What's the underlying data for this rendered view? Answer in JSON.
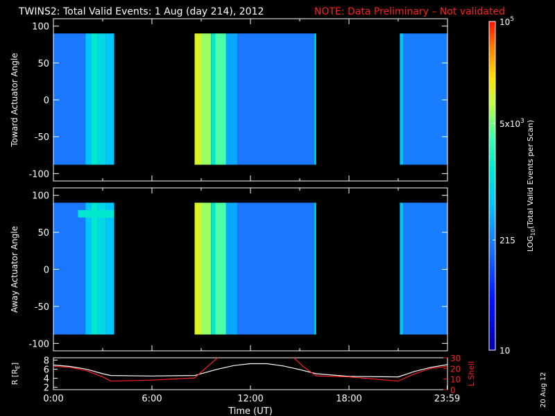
{
  "header": {
    "title": "TWINS2: Total Valid Events:  1 Aug (day 214), 2012",
    "note": "NOTE: Data Preliminary – Not validated",
    "note_color": "#ff2020"
  },
  "stamp": "20 Aug 12",
  "chart_data": [
    {
      "type": "heatmap",
      "panel": "toward",
      "ylabel": "Toward Actuator Angle",
      "xlim": [
        0,
        24
      ],
      "ylim": [
        -110,
        110
      ],
      "yticks": [
        100,
        50,
        0,
        -50,
        -100
      ],
      "data_y_range": [
        -88,
        90
      ],
      "segments": [
        {
          "start": 0.0,
          "end": 1.95,
          "level": 0.32
        },
        {
          "start": 1.95,
          "end": 2.3,
          "level": 0.45
        },
        {
          "start": 2.3,
          "end": 2.7,
          "level": 0.55
        },
        {
          "start": 2.7,
          "end": 3.2,
          "level": 0.5
        },
        {
          "start": 3.2,
          "end": 3.7,
          "level": 0.45
        },
        {
          "start": 8.6,
          "end": 9.0,
          "level": 0.78
        },
        {
          "start": 9.0,
          "end": 9.6,
          "level": 0.72
        },
        {
          "start": 9.6,
          "end": 9.85,
          "level": 0.55
        },
        {
          "start": 9.85,
          "end": 10.5,
          "level": 0.66
        },
        {
          "start": 10.5,
          "end": 11.2,
          "level": 0.4
        },
        {
          "start": 11.2,
          "end": 15.9,
          "level": 0.32
        },
        {
          "start": 15.9,
          "end": 16.0,
          "level": 0.55
        },
        {
          "start": 21.1,
          "end": 21.3,
          "level": 0.45
        },
        {
          "start": 21.3,
          "end": 24.0,
          "level": 0.33
        }
      ]
    },
    {
      "type": "heatmap",
      "panel": "away",
      "ylabel": "Away Actuator Angle",
      "xlim": [
        0,
        24
      ],
      "ylim": [
        -110,
        110
      ],
      "yticks": [
        100,
        50,
        0,
        -50,
        -100
      ],
      "data_y_range": [
        -88,
        90
      ],
      "segments": [
        {
          "start": 0.0,
          "end": 1.95,
          "level": 0.32
        },
        {
          "start": 1.95,
          "end": 2.3,
          "level": 0.45
        },
        {
          "start": 2.3,
          "end": 2.7,
          "level": 0.55
        },
        {
          "start": 2.7,
          "end": 3.2,
          "level": 0.5
        },
        {
          "start": 3.2,
          "end": 3.7,
          "level": 0.45
        },
        {
          "start": 8.6,
          "end": 9.0,
          "level": 0.78
        },
        {
          "start": 9.0,
          "end": 9.6,
          "level": 0.72
        },
        {
          "start": 9.6,
          "end": 9.85,
          "level": 0.55
        },
        {
          "start": 9.85,
          "end": 10.5,
          "level": 0.66
        },
        {
          "start": 10.5,
          "end": 11.2,
          "level": 0.4
        },
        {
          "start": 11.2,
          "end": 15.9,
          "level": 0.32
        },
        {
          "start": 15.9,
          "end": 16.0,
          "level": 0.55
        },
        {
          "start": 21.1,
          "end": 21.3,
          "level": 0.45
        },
        {
          "start": 21.3,
          "end": 24.0,
          "level": 0.33
        }
      ],
      "top_band": {
        "start": 1.5,
        "end": 3.7,
        "y_range": [
          70,
          80
        ],
        "level": 0.55
      }
    },
    {
      "type": "line",
      "panel": "orbit",
      "ylabel": "R [R",
      "ylabel_sub": "E",
      "ylabel_close": "]",
      "y2label": "L Shell",
      "xlabel": "Time (UT)",
      "xlim": [
        0,
        24
      ],
      "ylim": [
        1.5,
        8.5
      ],
      "y2lim": [
        0,
        30
      ],
      "yticks": [
        2,
        4,
        6,
        8
      ],
      "y2ticks": [
        0,
        10,
        20,
        30
      ],
      "xticks": [
        0,
        6,
        12,
        18,
        23.98
      ],
      "xticklabels": [
        "0:00",
        "6:00",
        "12:00",
        "18:00",
        "23:59"
      ],
      "series": [
        {
          "axis": "left",
          "color": "#ffffff",
          "x": [
            0,
            1,
            2,
            3,
            3.5,
            6,
            8.6,
            10,
            11,
            12,
            13,
            14,
            15,
            16,
            18,
            21,
            22,
            23,
            24
          ],
          "y": [
            6.9,
            6.6,
            6.0,
            5.0,
            4.6,
            4.5,
            4.6,
            6.0,
            6.8,
            7.2,
            7.2,
            6.7,
            5.9,
            5.0,
            4.4,
            4.3,
            5.5,
            6.4,
            7.0
          ]
        },
        {
          "axis": "right",
          "color": "#ff2020",
          "x": [
            0,
            1,
            2,
            3,
            3.5,
            6,
            8.6,
            9.4,
            10,
            10.05,
            14.6,
            14.65,
            15.2,
            16,
            18,
            21,
            22,
            23,
            24
          ],
          "y": [
            22,
            21,
            18,
            12,
            8,
            9,
            11,
            22,
            31,
            null,
            null,
            31,
            22,
            13,
            12,
            8,
            15,
            20,
            22
          ]
        }
      ]
    }
  ],
  "colorbar": {
    "label": "LOG",
    "label_sub": "10",
    "label_rest": "(Total Valid  Events per Scan)",
    "ticks": [
      {
        "base": "10",
        "exp": "5",
        "frac": 1.0
      },
      {
        "base": "5x10",
        "exp": "3",
        "frac": 0.69
      },
      {
        "base": "215",
        "exp": "",
        "frac": 0.335
      },
      {
        "base": "10",
        "exp": "",
        "frac": 0.0
      }
    ]
  }
}
